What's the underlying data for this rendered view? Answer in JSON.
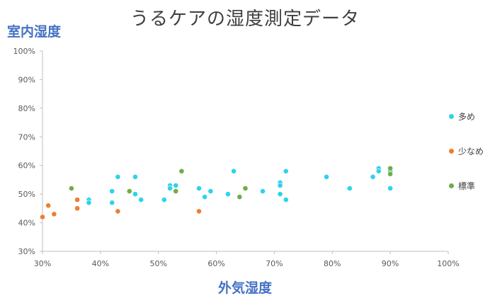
{
  "chart_data": {
    "type": "scatter",
    "title": "うるケアの湿度測定データ",
    "xlabel": "外気湿度",
    "ylabel": "室内湿度",
    "xlim": [
      0.3,
      1.0
    ],
    "ylim": [
      0.3,
      1.0
    ],
    "x_ticks": [
      "30%",
      "40%",
      "50%",
      "60%",
      "70%",
      "80%",
      "90%",
      "100%"
    ],
    "y_ticks": [
      "30%",
      "40%",
      "50%",
      "60%",
      "70%",
      "80%",
      "90%",
      "100%"
    ],
    "grid": false,
    "legend_position": "right",
    "series": [
      {
        "name": "多め",
        "color": "#2fd3ea",
        "points": [
          [
            0.38,
            0.48
          ],
          [
            0.38,
            0.47
          ],
          [
            0.42,
            0.51
          ],
          [
            0.42,
            0.47
          ],
          [
            0.43,
            0.56
          ],
          [
            0.46,
            0.56
          ],
          [
            0.46,
            0.5
          ],
          [
            0.47,
            0.48
          ],
          [
            0.51,
            0.48
          ],
          [
            0.52,
            0.53
          ],
          [
            0.52,
            0.52
          ],
          [
            0.53,
            0.53
          ],
          [
            0.57,
            0.52
          ],
          [
            0.58,
            0.49
          ],
          [
            0.59,
            0.51
          ],
          [
            0.62,
            0.5
          ],
          [
            0.63,
            0.58
          ],
          [
            0.68,
            0.51
          ],
          [
            0.71,
            0.54
          ],
          [
            0.71,
            0.53
          ],
          [
            0.71,
            0.5
          ],
          [
            0.72,
            0.58
          ],
          [
            0.72,
            0.48
          ],
          [
            0.79,
            0.56
          ],
          [
            0.83,
            0.52
          ],
          [
            0.87,
            0.56
          ],
          [
            0.88,
            0.59
          ],
          [
            0.88,
            0.58
          ],
          [
            0.9,
            0.58
          ],
          [
            0.9,
            0.52
          ]
        ]
      },
      {
        "name": "少なめ",
        "color": "#ed7d31",
        "points": [
          [
            0.3,
            0.42
          ],
          [
            0.31,
            0.46
          ],
          [
            0.32,
            0.43
          ],
          [
            0.36,
            0.48
          ],
          [
            0.36,
            0.45
          ],
          [
            0.43,
            0.44
          ],
          [
            0.57,
            0.44
          ]
        ]
      },
      {
        "name": "標準",
        "color": "#70ad47",
        "points": [
          [
            0.35,
            0.52
          ],
          [
            0.45,
            0.51
          ],
          [
            0.53,
            0.51
          ],
          [
            0.54,
            0.58
          ],
          [
            0.64,
            0.49
          ],
          [
            0.65,
            0.52
          ],
          [
            0.9,
            0.59
          ],
          [
            0.9,
            0.57
          ]
        ]
      }
    ]
  }
}
